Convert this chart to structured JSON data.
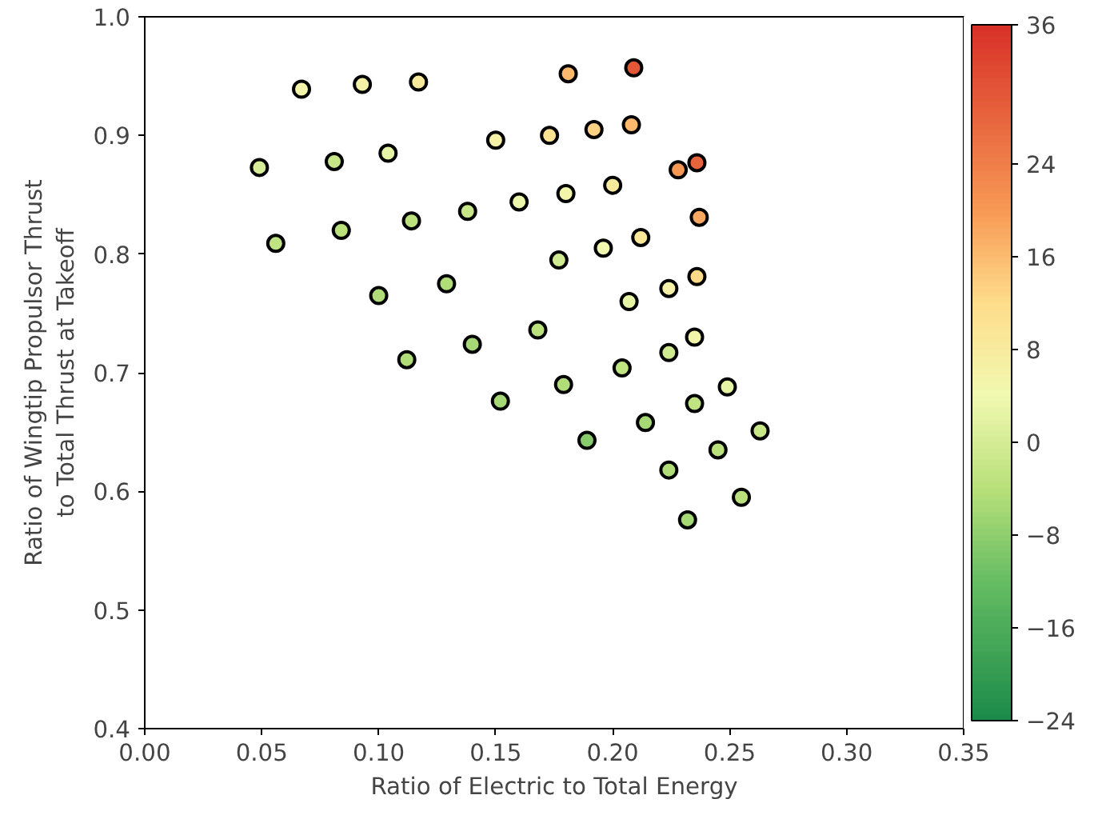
{
  "chart_data": {
    "type": "scatter",
    "xlabel": "Ratio of Electric to Total Energy",
    "ylabel": "Ratio of Wingtip Propulsor Thrust\nto Total Thrust at Takeoff",
    "xlim": [
      0.0,
      0.35
    ],
    "ylim": [
      0.4,
      1.0
    ],
    "xticks": [
      {
        "value": 0.0,
        "label": "0.00"
      },
      {
        "value": 0.05,
        "label": "0.05"
      },
      {
        "value": 0.1,
        "label": "0.10"
      },
      {
        "value": 0.15,
        "label": "0.15"
      },
      {
        "value": 0.2,
        "label": "0.20"
      },
      {
        "value": 0.25,
        "label": "0.25"
      },
      {
        "value": 0.3,
        "label": "0.30"
      },
      {
        "value": 0.35,
        "label": "0.35"
      }
    ],
    "yticks": [
      {
        "value": 0.4,
        "label": "0.4"
      },
      {
        "value": 0.5,
        "label": "0.5"
      },
      {
        "value": 0.6,
        "label": "0.6"
      },
      {
        "value": 0.7,
        "label": "0.7"
      },
      {
        "value": 0.8,
        "label": "0.8"
      },
      {
        "value": 0.9,
        "label": "0.9"
      },
      {
        "value": 1.0,
        "label": "1.0"
      }
    ],
    "clim": [
      -24,
      36
    ],
    "cticks": [
      {
        "value": -24,
        "label": "−24"
      },
      {
        "value": -16,
        "label": "−16"
      },
      {
        "value": -8,
        "label": "−8"
      },
      0,
      8,
      16,
      24,
      36
    ],
    "marker": "circle",
    "grid": false,
    "series": [
      {
        "color": "#000000",
        "x": [
          0.067,
          0.093,
          0.117,
          0.049,
          0.081,
          0.104,
          0.056,
          0.084,
          0.114,
          0.138,
          0.129,
          0.1,
          0.14,
          0.112,
          0.181,
          0.209,
          0.15,
          0.173,
          0.192,
          0.208,
          0.228,
          0.236,
          0.16,
          0.18,
          0.2,
          0.237,
          0.196,
          0.212,
          0.177,
          0.236,
          0.224,
          0.207,
          0.168,
          0.235,
          0.224,
          0.204,
          0.179,
          0.249,
          0.152,
          0.235,
          0.214,
          0.263,
          0.189,
          0.245,
          0.224,
          0.255,
          0.232
        ],
        "values": [
          0.939,
          0.943,
          0.945,
          0.873,
          0.878,
          0.885,
          0.809,
          0.82,
          0.828,
          0.836,
          0.775,
          0.765,
          0.724,
          0.711,
          0.952,
          0.957,
          0.896,
          0.9,
          0.905,
          0.909,
          0.871,
          0.877,
          0.844,
          0.851,
          0.858,
          0.831,
          0.805,
          0.814,
          0.795,
          0.781,
          0.771,
          0.76,
          0.736,
          0.73,
          0.717,
          0.704,
          0.69,
          0.688,
          0.676,
          0.674,
          0.658,
          0.651,
          0.643,
          0.635,
          0.618,
          0.595,
          0.576
        ],
        "cvalues": [
          5,
          6,
          8,
          0,
          -2,
          2,
          -3,
          -4,
          -4,
          -2,
          -5,
          -5,
          -6,
          -5,
          16,
          30,
          6,
          10,
          13,
          16,
          20,
          28,
          3,
          5,
          8,
          18,
          4,
          9,
          -1,
          12,
          6,
          2,
          -4,
          5,
          -1,
          -3,
          -5,
          2,
          -6,
          -3,
          -6,
          -2,
          -9,
          -4,
          -5,
          -4,
          -6
        ]
      }
    ]
  }
}
